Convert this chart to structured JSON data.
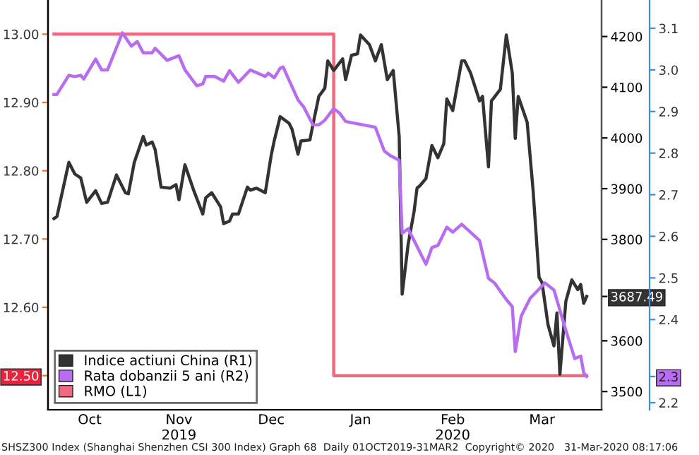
{
  "chart_data": {
    "type": "line",
    "xlim": [
      "2019-10-02",
      "2020-04-05"
    ],
    "xticks": [
      {
        "value": "2019-10-16",
        "label": "Oct"
      },
      {
        "value": "2019-11-15",
        "label": "Nov\n2019"
      },
      {
        "value": "2019-12-16",
        "label": "Dec"
      },
      {
        "value": "2020-01-15",
        "label": "Jan"
      },
      {
        "value": "2020-02-15",
        "label": "Feb\n2020"
      },
      {
        "value": "2020-03-16",
        "label": "Mar"
      }
    ],
    "ylim": [
      12.45,
      13.05
    ],
    "yticks": [
      {
        "value": 12.5,
        "label": "12.50"
      },
      {
        "value": 12.6,
        "label": "12.60"
      },
      {
        "value": 12.7,
        "label": "12.70"
      },
      {
        "value": 12.8,
        "label": "12.80"
      },
      {
        "value": 12.9,
        "label": "12.90"
      },
      {
        "value": 13.0,
        "label": "13.00"
      }
    ],
    "y2lim": [
      3464,
      4272
    ],
    "y2ticks": [
      3500,
      3600,
      {
        "value": 3687.49,
        "label": "3687.49"
      },
      3800,
      3900,
      4000,
      4100,
      4200
    ],
    "y3lim": [
      2.183,
      3.168
    ],
    "y3ticks": [
      2.2,
      {
        "value": 2.263,
        "label": "2.3"
      },
      2.4,
      2.5,
      2.6,
      2.7,
      2.8,
      2.9,
      {
        "value": 3.0,
        "label": "3.0"
      },
      3.1
    ],
    "grid": false,
    "legend": "bottom left",
    "series": [
      {
        "name": "Indice actiuni China (R1)",
        "color": "#333333",
        "axis": "y2",
        "x": [
          "2019-10-04",
          "2019-10-05",
          "2019-10-09",
          "2019-10-11",
          "2019-10-13",
          "2019-10-15",
          "2019-10-18",
          "2019-10-20",
          "2019-10-22",
          "2019-10-25",
          "2019-10-28",
          "2019-10-29",
          "2019-10-31",
          "2019-11-03",
          "2019-11-04",
          "2019-11-06",
          "2019-11-07",
          "2019-11-09",
          "2019-11-12",
          "2019-11-14",
          "2019-11-15",
          "2019-11-17",
          "2019-11-20",
          "2019-11-23",
          "2019-11-24",
          "2019-11-26",
          "2019-11-29",
          "2019-11-30",
          "2019-12-02",
          "2019-12-03",
          "2019-12-05",
          "2019-12-08",
          "2019-12-09",
          "2019-12-11",
          "2019-12-14",
          "2019-12-16",
          "2019-12-17",
          "2019-12-19",
          "2019-12-22",
          "2019-12-23",
          "2019-12-25",
          "2019-12-26",
          "2019-12-29",
          "2019-12-30",
          "2020-01-01",
          "2020-01-03",
          "2020-01-04",
          "2020-01-06",
          "2020-01-09",
          "2020-01-10",
          "2020-01-12",
          "2020-01-14",
          "2020-01-15",
          "2020-01-18",
          "2020-01-20",
          "2020-01-22",
          "2020-01-24",
          "2020-01-26",
          "2020-01-28",
          "2020-01-29",
          "2020-01-31",
          "2020-02-02",
          "2020-02-03",
          "2020-02-04",
          "2020-02-06",
          "2020-02-08",
          "2020-02-10",
          "2020-02-12",
          "2020-02-13",
          "2020-02-15",
          "2020-02-18",
          "2020-02-19",
          "2020-02-21",
          "2020-02-24",
          "2020-02-25",
          "2020-02-27",
          "2020-02-28",
          "2020-03-02",
          "2020-03-04",
          "2020-03-06",
          "2020-03-07",
          "2020-03-08",
          "2020-03-11",
          "2020-03-13",
          "2020-03-15",
          "2020-03-16",
          "2020-03-18",
          "2020-03-20",
          "2020-03-21",
          "2020-03-22",
          "2020-03-24",
          "2020-03-26",
          "2020-03-28",
          "2020-03-29",
          "2020-03-30",
          "2020-03-31"
        ],
        "values": [
          3841,
          3845,
          3952,
          3929,
          3921,
          3873,
          3896,
          3871,
          3873,
          3927,
          3892,
          3890,
          3952,
          4003,
          3986,
          3992,
          3977,
          3903,
          3901,
          3908,
          3878,
          3947,
          3896,
          3850,
          3882,
          3892,
          3864,
          3831,
          3836,
          3850,
          3850,
          3903,
          3897,
          3901,
          3892,
          3966,
          3994,
          4042,
          4029,
          4017,
          3968,
          3994,
          3996,
          4026,
          4082,
          4098,
          4152,
          4133,
          4156,
          4115,
          4163,
          4166,
          4203,
          4184,
          4152,
          4184,
          4115,
          4133,
          4003,
          3692,
          3790,
          3855,
          3901,
          3906,
          3920,
          3985,
          3961,
          3989,
          4077,
          4054,
          4152,
          4152,
          4128,
          4073,
          4082,
          3943,
          4073,
          4096,
          4203,
          4128,
          3999,
          4082,
          4031,
          3896,
          3725,
          3715,
          3632,
          3590,
          3655,
          3534,
          3678,
          3720,
          3701,
          3711,
          3674,
          3687.49
        ]
      },
      {
        "name": "Rata dobanzii 5 ani (R2)",
        "color": "#b86cf0",
        "axis": "y3",
        "x": [
          "2019-10-04",
          "2019-10-05",
          "2019-10-09",
          "2019-10-11",
          "2019-10-13",
          "2019-10-14",
          "2019-10-18",
          "2019-10-20",
          "2019-10-22",
          "2019-10-27",
          "2019-10-30",
          "2019-11-01",
          "2019-11-03",
          "2019-11-06",
          "2019-11-07",
          "2019-11-11",
          "2019-11-15",
          "2019-11-17",
          "2019-11-21",
          "2019-11-23",
          "2019-11-24",
          "2019-11-27",
          "2019-11-30",
          "2019-12-02",
          "2019-12-05",
          "2019-12-09",
          "2019-12-14",
          "2019-12-15",
          "2019-12-17",
          "2019-12-19",
          "2019-12-20",
          "2019-12-25",
          "2019-12-27",
          "2019-12-30",
          "2020-01-01",
          "2020-01-03",
          "2020-01-06",
          "2020-01-08",
          "2020-01-10",
          "2020-01-20",
          "2020-01-23",
          "2020-01-25",
          "2020-01-28",
          "2020-01-29",
          "2020-01-31",
          "2020-02-06",
          "2020-02-08",
          "2020-02-10",
          "2020-02-13",
          "2020-02-15",
          "2020-02-18",
          "2020-02-24",
          "2020-02-27",
          "2020-02-29",
          "2020-03-04",
          "2020-03-06",
          "2020-03-07",
          "2020-03-09",
          "2020-03-12",
          "2020-03-17",
          "2020-03-20",
          "2020-03-24",
          "2020-03-27",
          "2020-03-29",
          "2020-03-30",
          "2020-03-31"
        ],
        "values": [
          2.941,
          2.941,
          2.987,
          2.984,
          2.987,
          2.978,
          3.026,
          3.0,
          3.0,
          3.089,
          3.057,
          3.068,
          3.041,
          3.041,
          3.052,
          3.023,
          3.034,
          3.0,
          2.962,
          2.966,
          2.984,
          2.984,
          2.973,
          2.998,
          2.97,
          3.0,
          2.984,
          2.992,
          2.981,
          3.004,
          3.007,
          2.928,
          2.91,
          2.868,
          2.868,
          2.879,
          2.907,
          2.896,
          2.876,
          2.862,
          2.805,
          2.794,
          2.783,
          2.607,
          2.618,
          2.533,
          2.573,
          2.578,
          2.622,
          2.61,
          2.629,
          2.59,
          2.499,
          2.488,
          2.448,
          2.431,
          2.323,
          2.408,
          2.451,
          2.488,
          2.471,
          2.374,
          2.306,
          2.312,
          2.272,
          2.263
        ]
      },
      {
        "name": "RMO (L1)",
        "color": "#f06a7e",
        "type": "step",
        "axis": "y",
        "x": [
          "2019-10-04",
          "2020-01-06",
          "2020-03-31"
        ],
        "values": [
          13.0,
          12.5,
          12.5
        ]
      }
    ],
    "annotations": [
      "SHSZ300 Index (Shanghai Shenzhen CSI 300 Index) Graph 68  Daily 01OCT2019-31MAR2  Copyright© 2020   31-Mar-2020 08:17:06"
    ]
  }
}
